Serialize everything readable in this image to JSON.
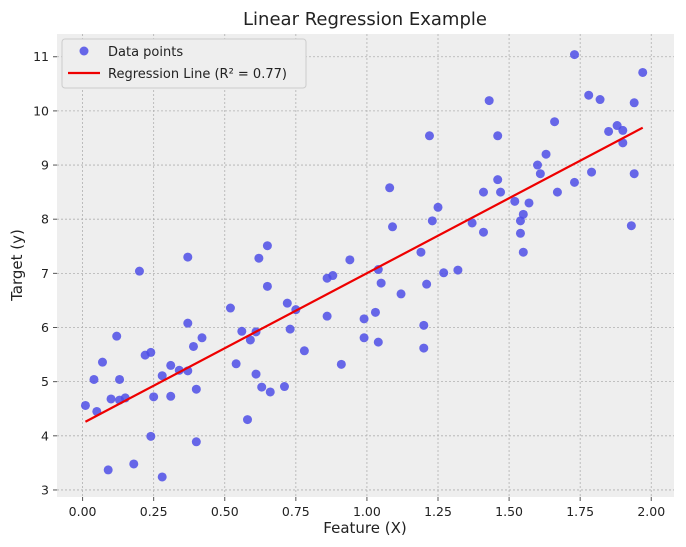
{
  "chart_data": {
    "type": "scatter",
    "title": "Linear Regression Example",
    "xlabel": "Feature (X)",
    "ylabel": "Target (y)",
    "xlim": [
      -0.09,
      2.08
    ],
    "ylim": [
      2.87,
      11.42
    ],
    "xticks": [
      "0.00",
      "0.25",
      "0.50",
      "0.75",
      "1.00",
      "1.25",
      "1.50",
      "1.75",
      "2.00"
    ],
    "yticks": [
      "3",
      "4",
      "5",
      "6",
      "7",
      "8",
      "9",
      "10",
      "11"
    ],
    "grid": true,
    "legend_position": "top-left",
    "legend": [
      {
        "label": "Data points",
        "kind": "marker"
      },
      {
        "label": "Regression Line (R² = 0.77)",
        "kind": "line"
      }
    ],
    "colors": {
      "points": "#4d4de6",
      "line": "#ee0000",
      "plot_background": "#eeeeee"
    },
    "regression_line": {
      "x": [
        0.01,
        1.97
      ],
      "y": [
        4.26,
        9.69
      ]
    },
    "series": [
      {
        "name": "Data points",
        "points": [
          [
            0.01,
            4.56
          ],
          [
            0.04,
            5.04
          ],
          [
            0.05,
            4.45
          ],
          [
            0.07,
            5.36
          ],
          [
            0.09,
            3.37
          ],
          [
            0.1,
            4.68
          ],
          [
            0.12,
            5.84
          ],
          [
            0.13,
            5.04
          ],
          [
            0.13,
            4.66
          ],
          [
            0.15,
            4.7
          ],
          [
            0.18,
            3.48
          ],
          [
            0.2,
            7.04
          ],
          [
            0.22,
            5.49
          ],
          [
            0.24,
            3.99
          ],
          [
            0.24,
            5.54
          ],
          [
            0.25,
            4.72
          ],
          [
            0.28,
            5.11
          ],
          [
            0.28,
            3.24
          ],
          [
            0.31,
            5.3
          ],
          [
            0.31,
            4.73
          ],
          [
            0.34,
            5.21
          ],
          [
            0.37,
            7.3
          ],
          [
            0.37,
            5.2
          ],
          [
            0.37,
            6.08
          ],
          [
            0.39,
            5.65
          ],
          [
            0.4,
            3.89
          ],
          [
            0.4,
            4.86
          ],
          [
            0.42,
            5.81
          ],
          [
            0.52,
            6.36
          ],
          [
            0.54,
            5.33
          ],
          [
            0.56,
            5.93
          ],
          [
            0.58,
            4.3
          ],
          [
            0.59,
            5.77
          ],
          [
            0.61,
            5.14
          ],
          [
            0.61,
            5.92
          ],
          [
            0.62,
            7.28
          ],
          [
            0.63,
            4.9
          ],
          [
            0.65,
            7.51
          ],
          [
            0.65,
            6.76
          ],
          [
            0.66,
            4.81
          ],
          [
            0.71,
            4.91
          ],
          [
            0.72,
            6.45
          ],
          [
            0.73,
            5.97
          ],
          [
            0.75,
            6.33
          ],
          [
            0.78,
            5.57
          ],
          [
            0.86,
            6.91
          ],
          [
            0.86,
            6.21
          ],
          [
            0.88,
            6.96
          ],
          [
            0.91,
            5.32
          ],
          [
            0.94,
            7.25
          ],
          [
            0.99,
            6.16
          ],
          [
            0.99,
            5.81
          ],
          [
            1.03,
            6.28
          ],
          [
            1.04,
            5.73
          ],
          [
            1.04,
            7.07
          ],
          [
            1.05,
            6.82
          ],
          [
            1.08,
            8.58
          ],
          [
            1.09,
            7.86
          ],
          [
            1.12,
            6.62
          ],
          [
            1.19,
            7.39
          ],
          [
            1.2,
            6.04
          ],
          [
            1.2,
            5.62
          ],
          [
            1.21,
            6.8
          ],
          [
            1.22,
            9.54
          ],
          [
            1.23,
            7.97
          ],
          [
            1.25,
            8.22
          ],
          [
            1.27,
            7.01
          ],
          [
            1.32,
            7.06
          ],
          [
            1.37,
            7.93
          ],
          [
            1.41,
            8.5
          ],
          [
            1.41,
            7.76
          ],
          [
            1.43,
            10.19
          ],
          [
            1.46,
            8.73
          ],
          [
            1.46,
            9.54
          ],
          [
            1.47,
            8.5
          ],
          [
            1.52,
            8.33
          ],
          [
            1.54,
            7.97
          ],
          [
            1.54,
            7.74
          ],
          [
            1.55,
            8.09
          ],
          [
            1.55,
            7.39
          ],
          [
            1.57,
            8.3
          ],
          [
            1.6,
            9.0
          ],
          [
            1.61,
            8.84
          ],
          [
            1.63,
            9.2
          ],
          [
            1.66,
            9.8
          ],
          [
            1.67,
            8.5
          ],
          [
            1.73,
            11.04
          ],
          [
            1.73,
            8.68
          ],
          [
            1.78,
            10.29
          ],
          [
            1.79,
            8.87
          ],
          [
            1.82,
            10.21
          ],
          [
            1.85,
            9.62
          ],
          [
            1.88,
            9.73
          ],
          [
            1.9,
            9.64
          ],
          [
            1.9,
            9.41
          ],
          [
            1.93,
            7.88
          ],
          [
            1.94,
            8.84
          ],
          [
            1.94,
            10.15
          ],
          [
            1.97,
            10.71
          ]
        ]
      }
    ]
  }
}
